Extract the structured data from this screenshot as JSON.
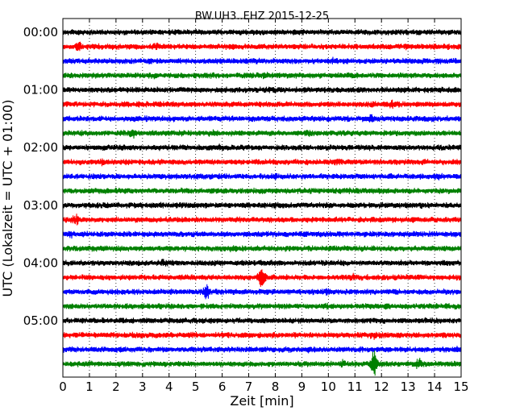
{
  "chart_data": {
    "type": "line",
    "title": "BW.UH3..EHZ 2015-12-25",
    "xlabel": "Zeit  [min]",
    "ylabel": "UTC (Lokalzeit = UTC + 01:00)",
    "xlim": [
      0,
      15
    ],
    "x_ticks": [
      "0",
      "1",
      "2",
      "3",
      "4",
      "5",
      "6",
      "7",
      "8",
      "9",
      "10",
      "11",
      "12",
      "13",
      "14",
      "15"
    ],
    "y_tick_labels": [
      "00:00",
      "01:00",
      "02:00",
      "03:00",
      "04:00",
      "05:00"
    ],
    "rows_per_hour": 4,
    "minutes_per_row": 15,
    "row_colors": [
      "#000000",
      "#ff0000",
      "#0000ff",
      "#008000"
    ],
    "grid": {
      "x": "dotted",
      "y": "none"
    },
    "legend": "none",
    "traces": [
      {
        "start": "00:00",
        "events": []
      },
      {
        "start": "00:15",
        "events": [
          {
            "minute": 0.6,
            "amplitude": 1.8
          },
          {
            "minute": 3.5,
            "amplitude": 1.5
          },
          {
            "minute": 13.0,
            "amplitude": 1.6
          }
        ]
      },
      {
        "start": "00:30",
        "events": [
          {
            "minute": 3.3,
            "amplitude": 1.4
          },
          {
            "minute": 10.2,
            "amplitude": 1.3
          }
        ]
      },
      {
        "start": "00:45",
        "events": [
          {
            "minute": 3.5,
            "amplitude": 1.3
          },
          {
            "minute": 7.6,
            "amplitude": 1.5
          }
        ]
      },
      {
        "start": "01:00",
        "events": [
          {
            "minute": 9.1,
            "amplitude": 1.3
          }
        ]
      },
      {
        "start": "01:15",
        "events": [
          {
            "minute": 12.4,
            "amplitude": 1.6
          }
        ]
      },
      {
        "start": "01:30",
        "events": [
          {
            "minute": 11.6,
            "amplitude": 1.6
          }
        ]
      },
      {
        "start": "01:45",
        "events": [
          {
            "minute": 2.6,
            "amplitude": 2.5
          },
          {
            "minute": 5.6,
            "amplitude": 1.4
          },
          {
            "minute": 9.2,
            "amplitude": 1.5
          }
        ]
      },
      {
        "start": "02:00",
        "events": [
          {
            "minute": 5.9,
            "amplitude": 1.4
          }
        ]
      },
      {
        "start": "02:15",
        "events": [
          {
            "minute": 1.5,
            "amplitude": 1.3
          },
          {
            "minute": 10.3,
            "amplitude": 1.4
          }
        ]
      },
      {
        "start": "02:30",
        "events": [
          {
            "minute": 8.0,
            "amplitude": 1.4
          },
          {
            "minute": 14.1,
            "amplitude": 1.4
          }
        ]
      },
      {
        "start": "02:45",
        "events": [
          {
            "minute": 10.8,
            "amplitude": 1.3
          }
        ]
      },
      {
        "start": "03:00",
        "events": []
      },
      {
        "start": "03:15",
        "events": [
          {
            "minute": 0.5,
            "amplitude": 2.0
          }
        ]
      },
      {
        "start": "03:30",
        "events": [
          {
            "minute": 0.3,
            "amplitude": 1.4
          }
        ]
      },
      {
        "start": "03:45",
        "events": [
          {
            "minute": 6.4,
            "amplitude": 1.5
          }
        ]
      },
      {
        "start": "04:00",
        "events": [
          {
            "minute": 3.8,
            "amplitude": 1.6
          }
        ]
      },
      {
        "start": "04:15",
        "events": [
          {
            "minute": 7.5,
            "amplitude": 4.5
          },
          {
            "minute": 10.9,
            "amplitude": 1.5
          }
        ]
      },
      {
        "start": "04:30",
        "events": [
          {
            "minute": 5.4,
            "amplitude": 3.0
          },
          {
            "minute": 10.0,
            "amplitude": 1.4
          }
        ]
      },
      {
        "start": "04:45",
        "events": [
          {
            "minute": 9.9,
            "amplitude": 1.4
          }
        ]
      },
      {
        "start": "05:00",
        "events": [
          {
            "minute": 2.2,
            "amplitude": 1.3
          }
        ]
      },
      {
        "start": "05:15",
        "events": [
          {
            "minute": 2.8,
            "amplitude": 1.4
          },
          {
            "minute": 11.7,
            "amplitude": 1.5
          }
        ]
      },
      {
        "start": "05:30",
        "events": [
          {
            "minute": 9.3,
            "amplitude": 1.3
          },
          {
            "minute": 14.9,
            "amplitude": 1.4
          }
        ]
      },
      {
        "start": "05:45",
        "events": [
          {
            "minute": 10.5,
            "amplitude": 1.6
          },
          {
            "minute": 11.7,
            "amplitude": 6.0
          },
          {
            "minute": 13.4,
            "amplitude": 2.2
          }
        ]
      }
    ]
  }
}
